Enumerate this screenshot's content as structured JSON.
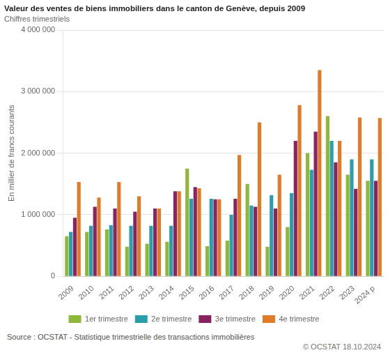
{
  "chart_data": {
    "type": "bar",
    "title": "Valeur des ventes de biens immobiliers dans le canton de Genève, depuis 2009",
    "subtitle": "Chiffres trimestriels",
    "ylabel": "En millier de francs courants",
    "annotations": [
      "Source : OCSTAT - Statistique trimestrielle des transactions immobilières",
      "© OCSTAT 18.10.2024"
    ],
    "categories": [
      "2009",
      "2010",
      "2011",
      "2012",
      "2013",
      "2014",
      "2015",
      "2016",
      "2017",
      "2018",
      "2019",
      "2020",
      "2021",
      "2022",
      "2023",
      "2024 p"
    ],
    "series": [
      {
        "name": "1er trimestre",
        "color": "#8db83a",
        "values": [
          650000,
          720000,
          760000,
          480000,
          530000,
          560000,
          1750000,
          490000,
          580000,
          1500000,
          480000,
          800000,
          2000000,
          2600000,
          1650000,
          1550000
        ]
      },
      {
        "name": "2e trimestre",
        "color": "#2b9eac",
        "values": [
          720000,
          820000,
          830000,
          820000,
          820000,
          820000,
          1260000,
          1260000,
          1000000,
          1150000,
          1320000,
          1350000,
          1730000,
          2200000,
          1900000,
          1900000
        ]
      },
      {
        "name": "3e trimestre",
        "color": "#8b2360",
        "values": [
          950000,
          1130000,
          1100000,
          1050000,
          1100000,
          1380000,
          1450000,
          1250000,
          1260000,
          1130000,
          1100000,
          2200000,
          2350000,
          1850000,
          1420000,
          1550000
        ]
      },
      {
        "name": "4e trimestre",
        "color": "#e07b2a",
        "values": [
          1530000,
          1280000,
          1530000,
          1300000,
          1100000,
          1380000,
          1430000,
          1250000,
          1970000,
          2500000,
          1650000,
          2780000,
          3350000,
          2200000,
          2580000,
          2570000
        ]
      }
    ],
    "ylim": [
      0,
      4000000
    ],
    "yticks": [
      0,
      {
        "value": 1000000,
        "label": "1 000 000"
      },
      {
        "value": 2000000,
        "label": "2 000 000"
      },
      {
        "value": 3000000,
        "label": "3 000 000"
      },
      {
        "value": 4000000,
        "label": "4 000 000"
      }
    ],
    "grid": true,
    "legend": "bottom"
  }
}
